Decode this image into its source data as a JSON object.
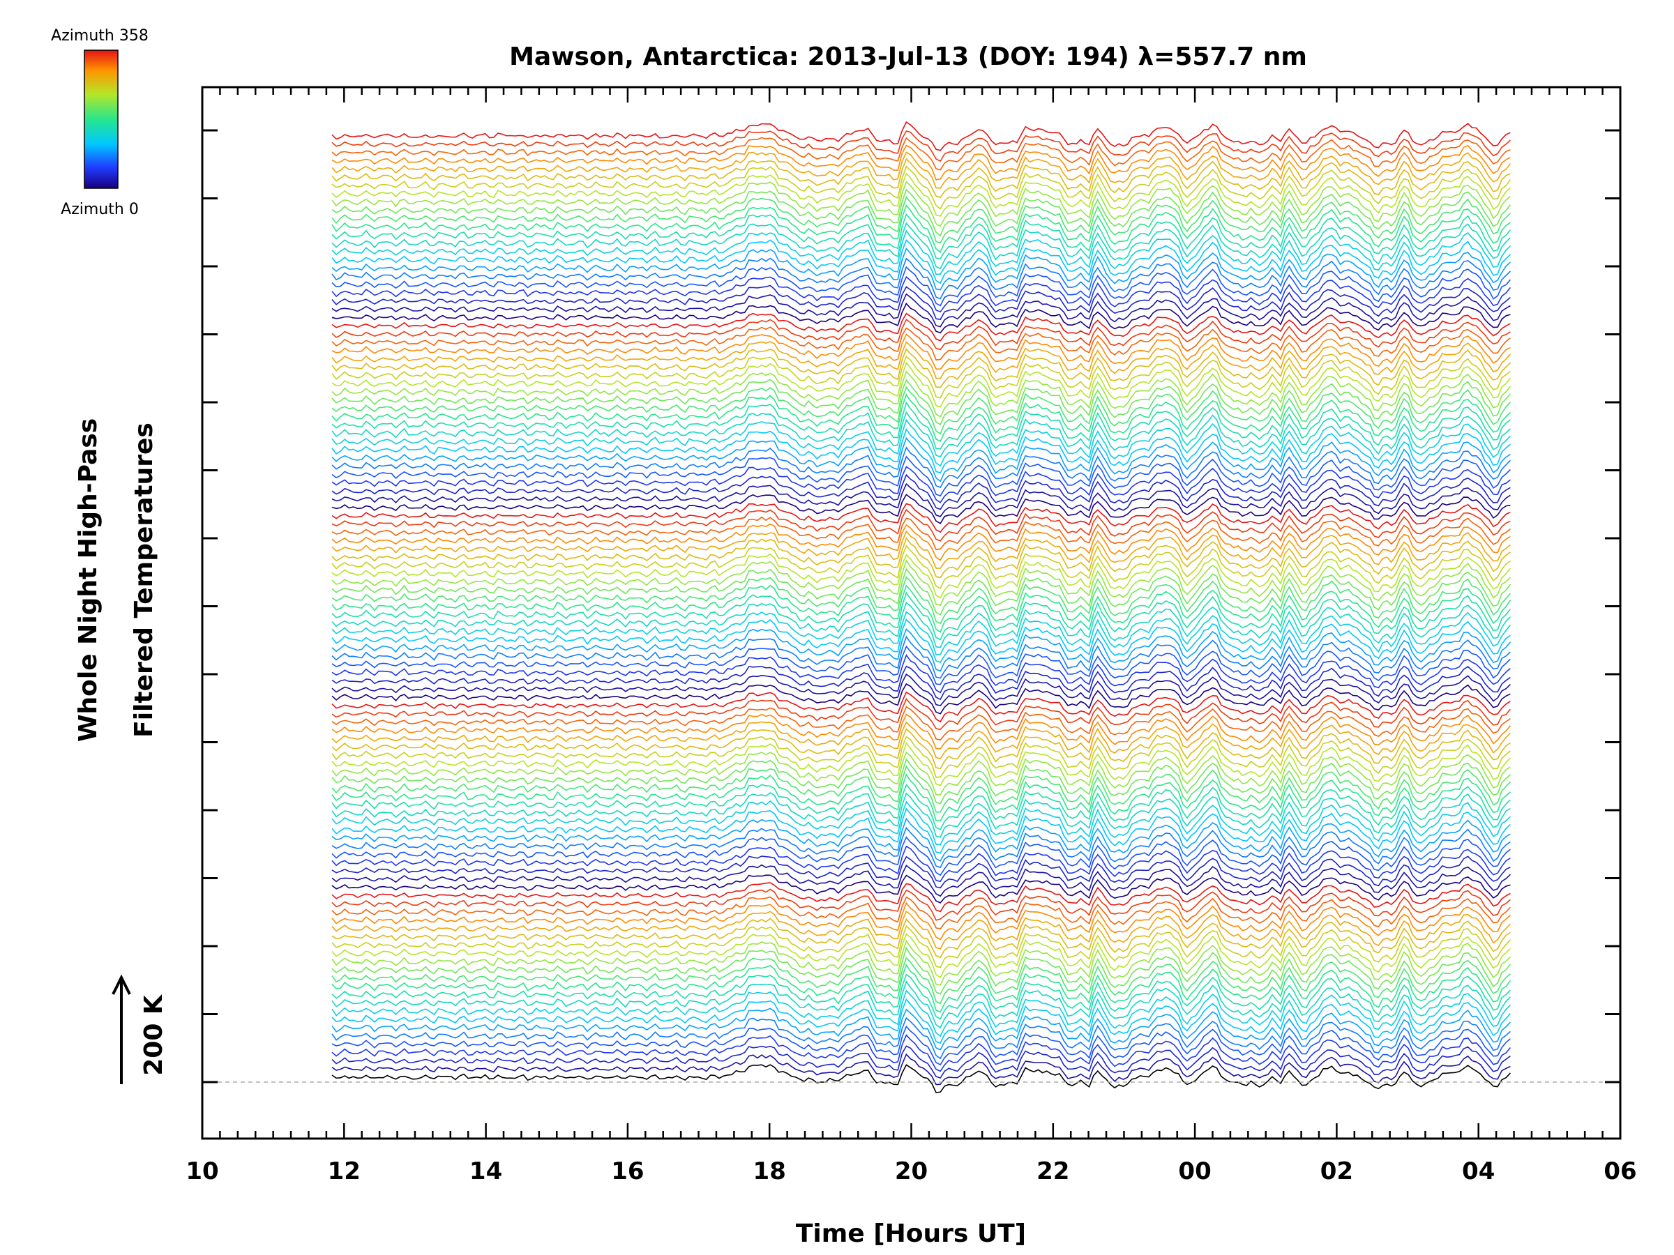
{
  "chart_data": {
    "type": "line",
    "title": "Mawson, Antarctica: 2013-Jul-13 (DOY: 194) λ=557.7 nm",
    "xlabel": "Time [Hours UT]",
    "ylabel_line1": "Whole Night High-Pass",
    "ylabel_line2": "Filtered Temperatures",
    "scale_bar_label": "200 K",
    "x_tick_labels": [
      "10",
      "12",
      "14",
      "16",
      "18",
      "20",
      "22",
      "00",
      "02",
      "04",
      "06"
    ],
    "x_range_hours": [
      10,
      30
    ],
    "data_x_range_hours": [
      11.83,
      28.45
    ],
    "y_ticks": 15,
    "colorbar": {
      "top_label": "Azimuth 358",
      "bottom_label": "Azimuth 0",
      "min": 0,
      "max": 358,
      "colormap": "rainbow"
    },
    "stacked_traces": {
      "count": 115,
      "description_pattern": "azimuth traces grouped in repeating blocks, each block sweeping azimuth 0 to 358",
      "block_size": 23,
      "blocks": 5
    },
    "event_times_hours": [
      17.9,
      19.8,
      20.4,
      21.5,
      22.5,
      25.2,
      26.8
    ],
    "colors": {
      "axes": "#000000",
      "baseline": "#aaaaaa"
    }
  }
}
